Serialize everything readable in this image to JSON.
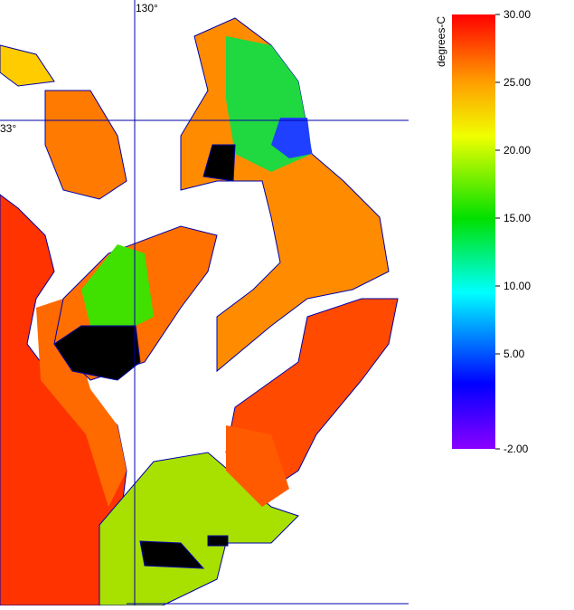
{
  "map": {
    "longitude_label": "130°",
    "latitude_label": "33°"
  },
  "colorbar": {
    "label": "degrees-C",
    "ylim": [
      -2,
      30
    ],
    "ticks": [
      {
        "value": 30,
        "label": "30.00"
      },
      {
        "value": 25,
        "label": "25.00"
      },
      {
        "value": 20,
        "label": "20.00"
      },
      {
        "value": 15,
        "label": "15.00"
      },
      {
        "value": 10,
        "label": "10.00"
      },
      {
        "value": 5,
        "label": "5.00"
      },
      {
        "value": -2,
        "label": "-2.00"
      }
    ]
  }
}
